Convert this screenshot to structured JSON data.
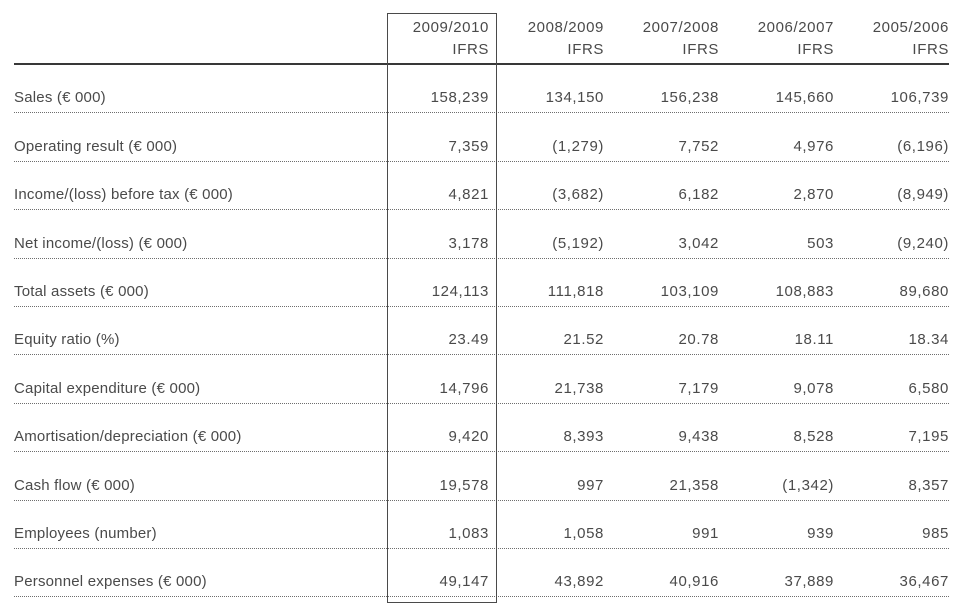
{
  "page": {
    "colors": {
      "text": "#4a4a4a",
      "header_rule": "#383838",
      "row_rule_dotted": "#6e6e6e",
      "highlight_border": "#4a4a4a",
      "background": "#ffffff"
    },
    "header": {
      "highlighted_column_index": 0,
      "columns": [
        {
          "period": "2009/2010",
          "basis": "IFRS"
        },
        {
          "period": "2008/2009",
          "basis": "IFRS"
        },
        {
          "period": "2007/2008",
          "basis": "IFRS"
        },
        {
          "period": "2006/2007",
          "basis": "IFRS"
        },
        {
          "period": "2005/2006",
          "basis": "IFRS"
        }
      ]
    },
    "rows": [
      {
        "label": "Sales (€ 000)",
        "values": [
          "158,239",
          "134,150",
          "156,238",
          "145,660",
          "106,739"
        ]
      },
      {
        "label": "Operating result (€ 000)",
        "values": [
          "7,359",
          "(1,279)",
          "7,752",
          "4,976",
          "(6,196)"
        ]
      },
      {
        "label": "Income/(loss) before tax (€ 000)",
        "values": [
          "4,821",
          "(3,682)",
          "6,182",
          "2,870",
          "(8,949)"
        ]
      },
      {
        "label": "Net income/(loss) (€ 000)",
        "values": [
          "3,178",
          "(5,192)",
          "3,042",
          "503",
          "(9,240)"
        ]
      },
      {
        "label": "Total assets (€ 000)",
        "values": [
          "124,113",
          "111,818",
          "103,109",
          "108,883",
          "89,680"
        ]
      },
      {
        "label": "Equity ratio (%)",
        "values": [
          "23.49",
          "21.52",
          "20.78",
          "18.11",
          "18.34"
        ]
      },
      {
        "label": "Capital expenditure (€ 000)",
        "values": [
          "14,796",
          "21,738",
          "7,179",
          "9,078",
          "6,580"
        ]
      },
      {
        "label": "Amortisation/depreciation (€ 000)",
        "values": [
          "9,420",
          "8,393",
          "9,438",
          "8,528",
          "7,195"
        ]
      },
      {
        "label": "Cash flow (€ 000)",
        "values": [
          "19,578",
          "997",
          "21,358",
          "(1,342)",
          "8,357"
        ]
      },
      {
        "label": "Employees (number)",
        "values": [
          "1,083",
          "1,058",
          "991",
          "939",
          "985"
        ]
      },
      {
        "label": "Personnel expenses (€ 000)",
        "values": [
          "49,147",
          "43,892",
          "40,916",
          "37,889",
          "36,467"
        ]
      }
    ]
  }
}
